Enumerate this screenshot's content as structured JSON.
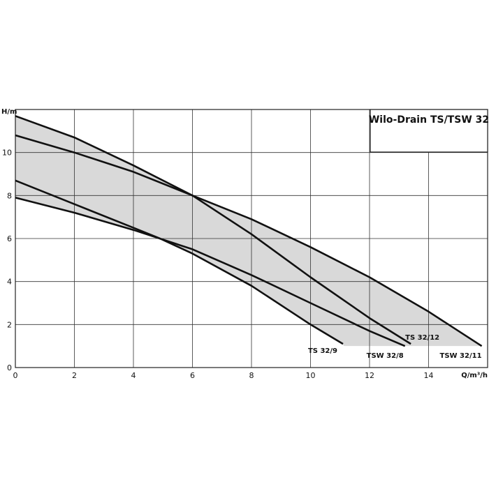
{
  "chart_data": {
    "type": "line",
    "title": "Wilo-Drain TS/TSW 32",
    "x_label": "Q/m³/h",
    "y_label": "H/m",
    "xlim": [
      0,
      16
    ],
    "ylim": [
      0,
      12
    ],
    "xticks": [
      0,
      2,
      4,
      6,
      8,
      10,
      12,
      14
    ],
    "yticks": [
      0,
      2,
      4,
      6,
      8,
      10
    ],
    "grid": true,
    "color": "#111111",
    "fill_color": "#d9d9d9",
    "series": [
      {
        "name": "TS 32/9",
        "x": [
          0,
          2,
          4,
          4.9,
          6,
          8,
          10,
          11.1
        ],
        "values": [
          8.7,
          7.6,
          6.5,
          6.0,
          5.3,
          3.8,
          2.0,
          1.1
        ]
      },
      {
        "name": "TSW 32/8",
        "x": [
          0,
          2,
          4,
          6,
          8,
          10,
          12,
          13.2
        ],
        "values": [
          7.9,
          7.2,
          6.4,
          5.5,
          4.3,
          3.0,
          1.7,
          1.0
        ]
      },
      {
        "name": "TS 32/12",
        "x": [
          0,
          2,
          4,
          6,
          8,
          10,
          12,
          13.4
        ],
        "values": [
          11.7,
          10.7,
          9.4,
          8.0,
          6.2,
          4.2,
          2.3,
          1.1
        ]
      },
      {
        "name": "TSW 32/11",
        "x": [
          0,
          2,
          4,
          6,
          8,
          10,
          12,
          14,
          15.8
        ],
        "values": [
          10.8,
          10.0,
          9.1,
          8.0,
          6.9,
          5.6,
          4.2,
          2.6,
          1.0
        ]
      }
    ]
  }
}
